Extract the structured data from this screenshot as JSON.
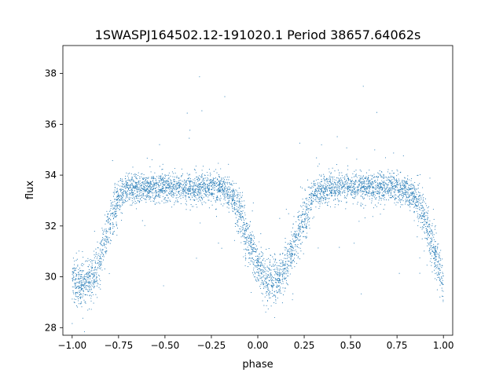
{
  "chart_data": {
    "type": "scatter",
    "title": "1SWASPJ164502.12-191020.1 Period 38657.64062s",
    "xlabel": "phase",
    "ylabel": "flux",
    "xlim": [
      -1.05,
      1.05
    ],
    "ylim": [
      27.7,
      39.1
    ],
    "xticks": [
      -1.0,
      -0.75,
      -0.5,
      -0.25,
      0.0,
      0.25,
      0.5,
      0.75,
      1.0
    ],
    "xtick_labels": [
      "−1.00",
      "−0.75",
      "−0.50",
      "−0.25",
      "0.00",
      "0.25",
      "0.50",
      "0.75",
      "1.00"
    ],
    "yticks": [
      28,
      30,
      32,
      34,
      36,
      38
    ],
    "ytick_labels": [
      "28",
      "30",
      "32",
      "34",
      "36",
      "38"
    ],
    "grid": false,
    "marker_color": "#1f77b4",
    "series": [
      {
        "description_free_profile": true,
        "phase": [
          -1.0,
          -0.95,
          -0.9,
          -0.85,
          -0.8,
          -0.75,
          -0.7,
          -0.6,
          -0.5,
          -0.4,
          -0.3,
          -0.2,
          -0.15,
          -0.1,
          -0.05,
          0.0,
          0.05,
          0.1,
          0.15,
          0.2,
          0.25,
          0.3,
          0.4,
          0.5,
          0.6,
          0.7,
          0.8,
          0.85,
          0.9,
          0.95,
          1.0
        ],
        "flux": [
          29.8,
          29.7,
          29.9,
          30.6,
          32.0,
          33.2,
          33.5,
          33.5,
          33.5,
          33.5,
          33.5,
          33.5,
          33.3,
          32.6,
          31.4,
          30.4,
          29.8,
          29.8,
          30.3,
          31.3,
          32.4,
          33.3,
          33.5,
          33.5,
          33.5,
          33.5,
          33.4,
          33.1,
          32.4,
          31.0,
          29.8
        ]
      }
    ]
  }
}
